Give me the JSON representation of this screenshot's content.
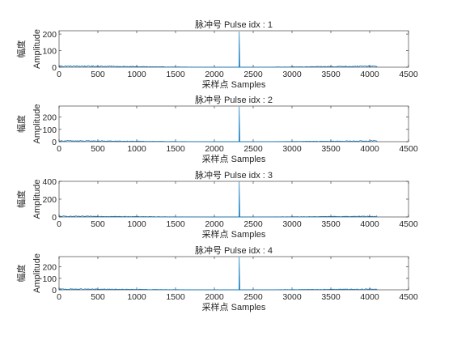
{
  "chart_data": [
    {
      "type": "line",
      "title": "脉冲号 Pulse idx : 1",
      "xlabel": "采样点 Samples",
      "ylabel_cn": "幅度",
      "ylabel_en": "Amplitude",
      "xlim": [
        0,
        4500
      ],
      "ylim": [
        0,
        220
      ],
      "xticks": [
        0,
        500,
        1000,
        1500,
        2000,
        2500,
        3000,
        3500,
        4000,
        4500
      ],
      "yticks": [
        0,
        100,
        200
      ],
      "data_extent": [
        0,
        4096
      ],
      "noise_level": 10,
      "peak": {
        "x": 2320,
        "y": 215
      },
      "series": [
        {
          "values_summary": "noise floor about 0-12 across samples 0-4096 with a single sharp spike near sample 2320"
        }
      ]
    },
    {
      "type": "line",
      "title": "脉冲号 Pulse idx : 2",
      "xlabel": "采样点 Samples",
      "ylabel_cn": "幅度",
      "ylabel_en": "Amplitude",
      "xlim": [
        0,
        4500
      ],
      "ylim": [
        0,
        290
      ],
      "xticks": [
        0,
        500,
        1000,
        1500,
        2000,
        2500,
        3000,
        3500,
        4000,
        4500
      ],
      "yticks": [
        0,
        100,
        200
      ],
      "data_extent": [
        0,
        4096
      ],
      "noise_level": 10,
      "peak": {
        "x": 2320,
        "y": 285
      },
      "series": [
        {
          "values_summary": "noise floor about 0-12 across samples 0-4096 with a single sharp spike near sample 2320"
        }
      ]
    },
    {
      "type": "line",
      "title": "脉冲号 Pulse idx : 3",
      "xlabel": "采样点 Samples",
      "ylabel_cn": "幅度",
      "ylabel_en": "Amplitude",
      "xlim": [
        0,
        4500
      ],
      "ylim": [
        0,
        400
      ],
      "xticks": [
        0,
        500,
        1000,
        1500,
        2000,
        2500,
        3000,
        3500,
        4000,
        4500
      ],
      "yticks": [
        0,
        200,
        400
      ],
      "data_extent": [
        0,
        4096
      ],
      "noise_level": 12,
      "peak": {
        "x": 2320,
        "y": 395
      },
      "series": [
        {
          "values_summary": "noise floor about 0-12 across samples 0-4096 with a single sharp spike near sample 2320"
        }
      ]
    },
    {
      "type": "line",
      "title": "脉冲号 Pulse idx : 4",
      "xlabel": "采样点 Samples",
      "ylabel_cn": "幅度",
      "ylabel_en": "Amplitude",
      "xlim": [
        0,
        4500
      ],
      "ylim": [
        0,
        290
      ],
      "xticks": [
        0,
        500,
        1000,
        1500,
        2000,
        2500,
        3000,
        3500,
        4000,
        4500
      ],
      "yticks": [
        0,
        100,
        200
      ],
      "data_extent": [
        0,
        4096
      ],
      "noise_level": 10,
      "peak": {
        "x": 2320,
        "y": 285
      },
      "series": [
        {
          "values_summary": "noise floor about 0-12 across samples 0-4096 with a single sharp spike near sample 2320"
        }
      ]
    }
  ],
  "colors": {
    "line": "#0072BD",
    "axis": "#262626"
  }
}
